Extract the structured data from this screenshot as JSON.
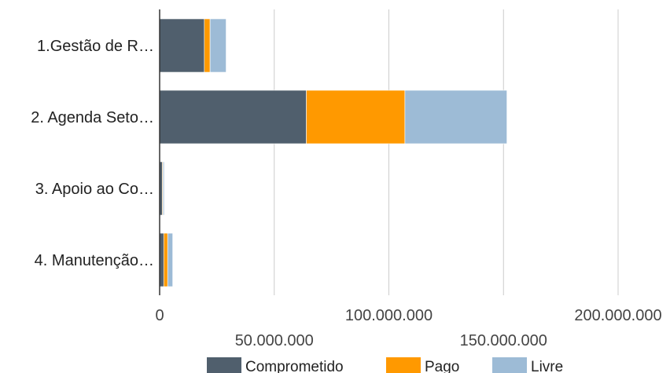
{
  "chart_data": {
    "type": "bar",
    "orientation": "horizontal",
    "stacked": true,
    "categories": [
      "1.Gestão de R…",
      "2. Agenda Seto…",
      "3. Apoio ao Co…",
      "4. Manutenção…"
    ],
    "series": [
      {
        "name": "Comprometido",
        "color": "#505f6d",
        "values": [
          19500000,
          64000000,
          1200000,
          1800000
        ]
      },
      {
        "name": "Pago",
        "color": "#ff9900",
        "values": [
          2500000,
          43000000,
          300000,
          1700000
        ]
      },
      {
        "name": "Livre",
        "color": "#9dbbd6",
        "values": [
          7000000,
          44500000,
          500000,
          2200000
        ]
      }
    ],
    "xlim": [
      0,
      200000000
    ],
    "xticks": [
      {
        "value": 0,
        "label": "0",
        "row": 1
      },
      {
        "value": 50000000,
        "label": "50.000.000",
        "row": 2
      },
      {
        "value": 100000000,
        "label": "100.000.000",
        "row": 1
      },
      {
        "value": 150000000,
        "label": "150.000.000",
        "row": 2
      },
      {
        "value": 200000000,
        "label": "200.000.000",
        "row": 1
      }
    ],
    "grid": true,
    "legend_position": "bottom"
  }
}
